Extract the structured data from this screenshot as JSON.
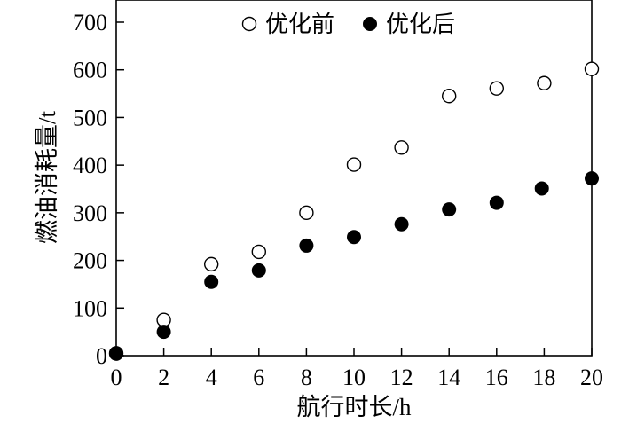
{
  "chart_data": {
    "type": "scatter",
    "xlabel": "航行时长/h",
    "ylabel": "燃油消耗量/t",
    "xlim": [
      0,
      20
    ],
    "ylim": [
      0,
      700
    ],
    "xticks": [
      "0",
      "2",
      "4",
      "6",
      "8",
      "10",
      "12",
      "14",
      "16",
      "18",
      "20"
    ],
    "yticks": [
      "0",
      "100",
      "200",
      "300",
      "400",
      "500",
      "600",
      "700"
    ],
    "legend_position": "top-center",
    "grid": false,
    "series": [
      {
        "name": "优化前",
        "marker": "open-circle",
        "color": "#000000",
        "points": [
          {
            "x": 0,
            "y": 5
          },
          {
            "x": 2,
            "y": 75
          },
          {
            "x": 4,
            "y": 192
          },
          {
            "x": 6,
            "y": 218
          },
          {
            "x": 8,
            "y": 300
          },
          {
            "x": 10,
            "y": 401
          },
          {
            "x": 12,
            "y": 437
          },
          {
            "x": 14,
            "y": 545
          },
          {
            "x": 16,
            "y": 561
          },
          {
            "x": 18,
            "y": 572
          },
          {
            "x": 20,
            "y": 602
          }
        ]
      },
      {
        "name": "优化后",
        "marker": "filled-circle",
        "color": "#000000",
        "points": [
          {
            "x": 0,
            "y": 4
          },
          {
            "x": 2,
            "y": 50
          },
          {
            "x": 4,
            "y": 155
          },
          {
            "x": 6,
            "y": 179
          },
          {
            "x": 8,
            "y": 231
          },
          {
            "x": 10,
            "y": 249
          },
          {
            "x": 12,
            "y": 276
          },
          {
            "x": 14,
            "y": 307
          },
          {
            "x": 16,
            "y": 321
          },
          {
            "x": 17.9,
            "y": 351
          },
          {
            "x": 20,
            "y": 372
          }
        ]
      }
    ]
  }
}
